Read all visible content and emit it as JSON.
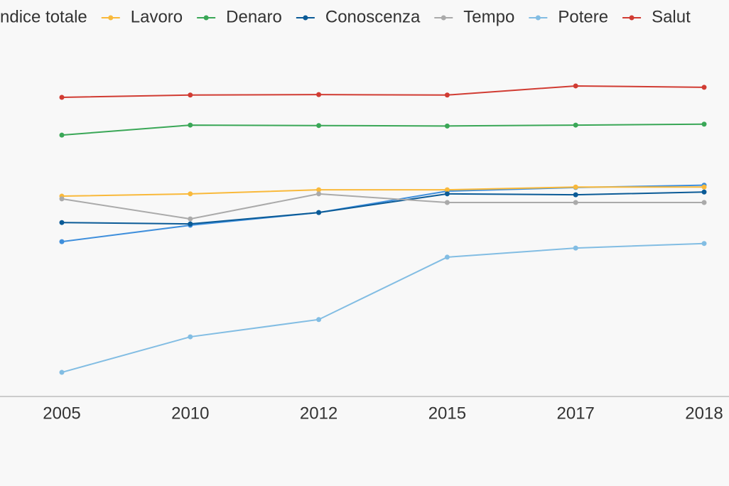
{
  "chart_data": {
    "type": "line",
    "categories": [
      "2005",
      "2010",
      "2012",
      "2015",
      "2017",
      "2018"
    ],
    "ylim": [
      20,
      90
    ],
    "series": [
      {
        "name": "ndice totale",
        "color": "#3f8fdc",
        "values": [
          54.2,
          57.8,
          60.6,
          65.3,
          66.1,
          66.6
        ]
      },
      {
        "name": "Lavoro",
        "color": "#f9b93b",
        "values": [
          64.2,
          64.7,
          65.6,
          65.6,
          66.2,
          66.2
        ]
      },
      {
        "name": "Denaro",
        "color": "#3aa757",
        "values": [
          77.6,
          79.8,
          79.7,
          79.6,
          79.8,
          80.0
        ]
      },
      {
        "name": "Conoscenza",
        "color": "#0b5b97",
        "values": [
          58.4,
          58.1,
          60.6,
          64.7,
          64.5,
          65.1
        ]
      },
      {
        "name": "Tempo",
        "color": "#aaaaaa",
        "values": [
          63.6,
          59.2,
          64.7,
          62.8,
          62.8,
          62.8
        ]
      },
      {
        "name": "Potere",
        "color": "#82bde3",
        "values": [
          25.5,
          33.3,
          37.1,
          50.8,
          52.8,
          53.8
        ]
      },
      {
        "name": "Salut",
        "color": "#d13c33",
        "values": [
          85.9,
          86.4,
          86.5,
          86.4,
          88.4,
          88.1
        ]
      }
    ]
  }
}
